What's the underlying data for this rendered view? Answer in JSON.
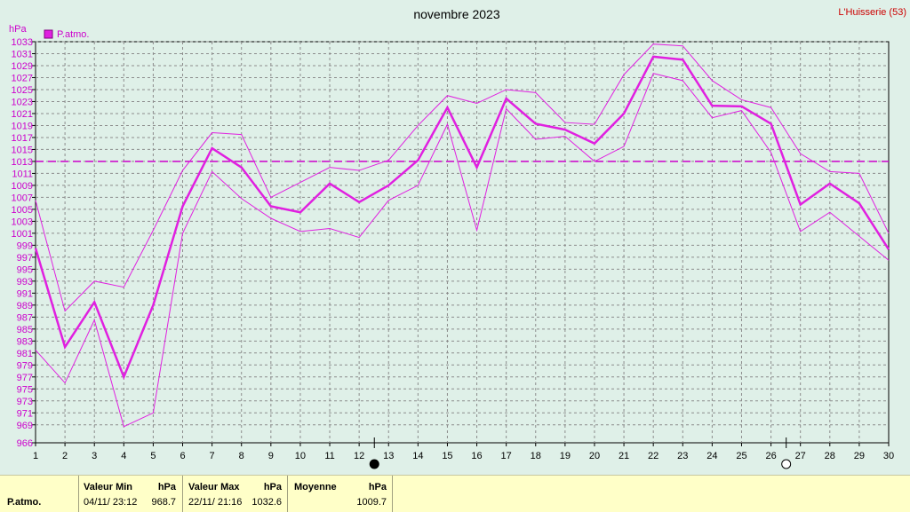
{
  "chart_data": {
    "type": "line",
    "title": "novembre 2023",
    "station": "L'Huisserie (53)",
    "y_unit": "hPa",
    "ylim": [
      966,
      1033
    ],
    "yticks": [
      966,
      969,
      971,
      973,
      975,
      977,
      979,
      981,
      983,
      985,
      987,
      989,
      991,
      993,
      995,
      997,
      999,
      1001,
      1003,
      1005,
      1007,
      1009,
      1011,
      1013,
      1015,
      1017,
      1019,
      1021,
      1023,
      1025,
      1027,
      1029,
      1031,
      1033
    ],
    "x": [
      1,
      2,
      3,
      4,
      5,
      6,
      7,
      8,
      9,
      10,
      11,
      12,
      13,
      14,
      15,
      16,
      17,
      18,
      19,
      20,
      21,
      22,
      23,
      24,
      25,
      26,
      27,
      28,
      29,
      30
    ],
    "xlim": [
      1,
      30
    ],
    "grid": true,
    "legend_position": "top-left",
    "series": [
      {
        "name": "P.atmo.",
        "role": "mean",
        "color": "#e020e0",
        "values": [
          998.5,
          982.0,
          989.5,
          977.0,
          989.0,
          1005.5,
          1015.2,
          1012.0,
          1005.5,
          1004.5,
          1009.3,
          1006.2,
          1009.0,
          1013.2,
          1022.0,
          1012.0,
          1023.5,
          1019.3,
          1018.3,
          1016.0,
          1021.0,
          1030.5,
          1030.0,
          1022.3,
          1022.2,
          1019.3,
          1005.8,
          1009.3,
          1006.0,
          998.3
        ]
      },
      {
        "role": "max",
        "color": "#e020e0",
        "values": [
          1006.5,
          988.0,
          993.0,
          992.0,
          1001.5,
          1011.5,
          1017.8,
          1017.5,
          1007.0,
          1009.5,
          1012.0,
          1011.5,
          1013.2,
          1019.0,
          1024.0,
          1022.7,
          1025.0,
          1024.5,
          1019.5,
          1019.2,
          1027.5,
          1032.6,
          1032.3,
          1026.5,
          1023.3,
          1022.0,
          1014.3,
          1011.3,
          1011.0,
          1001.0
        ]
      },
      {
        "role": "min",
        "color": "#e020e0",
        "values": [
          981.5,
          976.0,
          986.5,
          968.7,
          971.0,
          1001.0,
          1011.3,
          1006.8,
          1003.5,
          1001.3,
          1001.8,
          1000.3,
          1006.5,
          1009.0,
          1019.2,
          1001.5,
          1021.8,
          1016.7,
          1017.2,
          1013.0,
          1015.5,
          1027.7,
          1026.5,
          1020.3,
          1021.5,
          1014.5,
          1001.3,
          1004.5,
          1000.5,
          996.5
        ]
      }
    ],
    "average_line": 1013.0,
    "moon_phases": [
      {
        "day": 13,
        "phase": "new"
      },
      {
        "day": 27,
        "phase": "full"
      }
    ]
  },
  "stats": {
    "series_label": "P.atmo.",
    "min": {
      "header": "Valeur Min",
      "unit": "hPa",
      "datetime": "04/11/  23:12",
      "value": "968.7"
    },
    "max": {
      "header": "Valeur Max",
      "unit": "hPa",
      "datetime": "22/11/  21:16",
      "value": "1032.6"
    },
    "mean": {
      "header": "Moyenne",
      "unit": "hPa",
      "value": "1009.7"
    }
  }
}
